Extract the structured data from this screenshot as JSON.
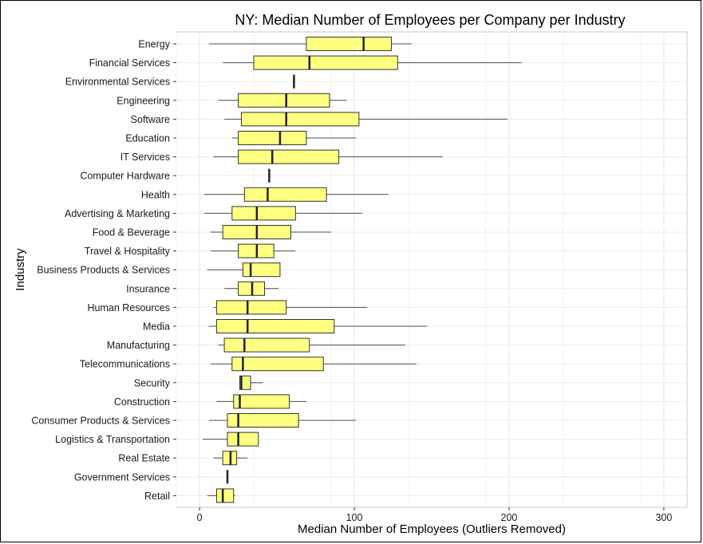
{
  "chart_data": {
    "type": "boxplot",
    "title": "NY: Median Number of Employees per Company per Industry",
    "xlabel": "Median Number of Employees (Outliers Removed)",
    "ylabel": "Industry",
    "xlim": [
      -15,
      315
    ],
    "xticks": [
      0,
      100,
      200,
      300
    ],
    "grid": true,
    "box_color": "#ffff80",
    "categories": [
      "Energy",
      "Financial Services",
      "Environmental Services",
      "Engineering",
      "Software",
      "Education",
      "IT Services",
      "Computer Hardware",
      "Health",
      "Advertising & Marketing",
      "Food & Beverage",
      "Travel & Hospitality",
      "Business Products & Services",
      "Insurance",
      "Human Resources",
      "Media",
      "Manufacturing",
      "Telecommunications",
      "Security",
      "Construction",
      "Consumer Products & Services",
      "Logistics & Transportation",
      "Real Estate",
      "Government Services",
      "Retail"
    ],
    "series": [
      {
        "category": "Energy",
        "min": 6,
        "q1": 69,
        "median": 106,
        "q3": 124,
        "max": 137
      },
      {
        "category": "Financial Services",
        "min": 15,
        "q1": 35,
        "median": 71,
        "q3": 128,
        "max": 208
      },
      {
        "category": "Environmental Services",
        "min": 61,
        "q1": 61,
        "median": 61,
        "q3": 61,
        "max": 61
      },
      {
        "category": "Engineering",
        "min": 12,
        "q1": 25,
        "median": 56,
        "q3": 84,
        "max": 95
      },
      {
        "category": "Software",
        "min": 16,
        "q1": 27,
        "median": 56,
        "q3": 103,
        "max": 199
      },
      {
        "category": "Education",
        "min": 21,
        "q1": 25,
        "median": 52,
        "q3": 69,
        "max": 101
      },
      {
        "category": "IT Services",
        "min": 9,
        "q1": 25,
        "median": 47,
        "q3": 90,
        "max": 157
      },
      {
        "category": "Computer Hardware",
        "min": 45,
        "q1": 45,
        "median": 45,
        "q3": 45,
        "max": 45
      },
      {
        "category": "Health",
        "min": 3,
        "q1": 29,
        "median": 44,
        "q3": 82,
        "max": 122
      },
      {
        "category": "Advertising & Marketing",
        "min": 3,
        "q1": 21,
        "median": 37,
        "q3": 62,
        "max": 105
      },
      {
        "category": "Food & Beverage",
        "min": 7,
        "q1": 15,
        "median": 37,
        "q3": 59,
        "max": 85
      },
      {
        "category": "Travel & Hospitality",
        "min": 7,
        "q1": 25,
        "median": 37,
        "q3": 48,
        "max": 62
      },
      {
        "category": "Business Products & Services",
        "min": 5,
        "q1": 28,
        "median": 33,
        "q3": 52,
        "max": 52
      },
      {
        "category": "Insurance",
        "min": 16,
        "q1": 25,
        "median": 34,
        "q3": 42,
        "max": 51
      },
      {
        "category": "Human Resources",
        "min": 9,
        "q1": 11,
        "median": 31,
        "q3": 56,
        "max": 108
      },
      {
        "category": "Media",
        "min": 6,
        "q1": 11,
        "median": 31,
        "q3": 87,
        "max": 147
      },
      {
        "category": "Manufacturing",
        "min": 12,
        "q1": 16,
        "median": 29,
        "q3": 71,
        "max": 133
      },
      {
        "category": "Telecommunications",
        "min": 7,
        "q1": 21,
        "median": 28,
        "q3": 80,
        "max": 140
      },
      {
        "category": "Security",
        "min": 26,
        "q1": 26,
        "median": 27,
        "q3": 33,
        "max": 41
      },
      {
        "category": "Construction",
        "min": 11,
        "q1": 22,
        "median": 26,
        "q3": 58,
        "max": 69
      },
      {
        "category": "Consumer Products & Services",
        "min": 6,
        "q1": 18,
        "median": 25,
        "q3": 64,
        "max": 101
      },
      {
        "category": "Logistics & Transportation",
        "min": 2,
        "q1": 18,
        "median": 25,
        "q3": 38,
        "max": 38
      },
      {
        "category": "Real Estate",
        "min": 9,
        "q1": 15,
        "median": 20,
        "q3": 24,
        "max": 31
      },
      {
        "category": "Government Services",
        "min": 18,
        "q1": 18,
        "median": 18,
        "q3": 18,
        "max": 18
      },
      {
        "category": "Retail",
        "min": 5,
        "q1": 11,
        "median": 15,
        "q3": 22,
        "max": 23
      }
    ]
  }
}
